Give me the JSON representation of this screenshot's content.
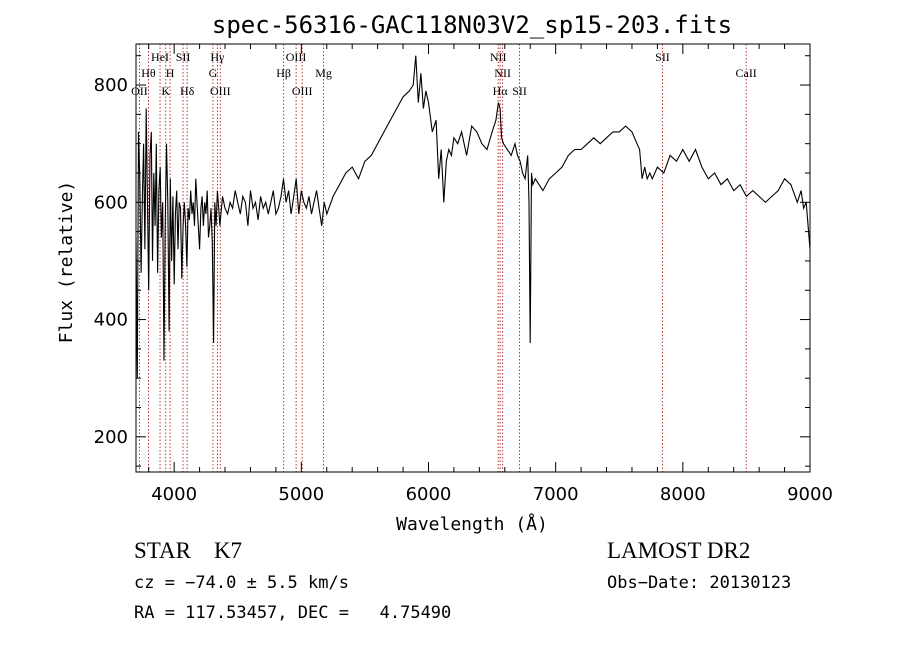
{
  "chart_data": {
    "type": "line",
    "title": "spec-56316-GAC118N03V2_sp15-203.fits",
    "xlabel": "Wavelength (Å)",
    "ylabel": "Flux (relative)",
    "xlim": [
      3700,
      9000
    ],
    "ylim": [
      140,
      870
    ],
    "xticks": [
      4000,
      5000,
      6000,
      7000,
      8000,
      9000
    ],
    "yticks": [
      200,
      400,
      600,
      800
    ],
    "grid": false,
    "colors": {
      "spectrum": "#000000",
      "lines": "#b22222"
    },
    "series": [
      {
        "x": [
          3700,
          3710,
          3720,
          3730,
          3740,
          3750,
          3760,
          3770,
          3780,
          3790,
          3800,
          3810,
          3820,
          3830,
          3840,
          3850,
          3860,
          3870,
          3880,
          3890,
          3900,
          3910,
          3920,
          3930,
          3940,
          3950,
          3960,
          3970,
          3980,
          3990,
          4000,
          4010,
          4020,
          4030,
          4040,
          4050,
          4060,
          4070,
          4080,
          4090,
          4100,
          4110,
          4120,
          4130,
          4140,
          4150,
          4160,
          4170,
          4180,
          4190,
          4200,
          4210,
          4220,
          4230,
          4240,
          4250,
          4260,
          4270,
          4280,
          4290,
          4300,
          4310,
          4320,
          4330,
          4340,
          4350,
          4360,
          4380,
          4400,
          4420,
          4440,
          4460,
          4480,
          4500,
          4520,
          4540,
          4560,
          4580,
          4600,
          4620,
          4640,
          4660,
          4680,
          4700,
          4720,
          4740,
          4760,
          4780,
          4800,
          4820,
          4840,
          4860,
          4880,
          4900,
          4920,
          4940,
          4960,
          4980,
          5000,
          5020,
          5040,
          5060,
          5080,
          5100,
          5120,
          5140,
          5160,
          5180,
          5200,
          5250,
          5300,
          5350,
          5400,
          5450,
          5500,
          5550,
          5600,
          5650,
          5700,
          5750,
          5800,
          5850,
          5880,
          5900,
          5920,
          5940,
          5960,
          5980,
          6000,
          6030,
          6060,
          6080,
          6100,
          6120,
          6140,
          6160,
          6180,
          6200,
          6230,
          6260,
          6300,
          6340,
          6380,
          6420,
          6460,
          6500,
          6530,
          6550,
          6563,
          6575,
          6590,
          6620,
          6650,
          6680,
          6700,
          6720,
          6740,
          6760,
          6780,
          6790,
          6800,
          6810,
          6820,
          6840,
          6870,
          6900,
          6950,
          7000,
          7050,
          7100,
          7150,
          7200,
          7250,
          7300,
          7350,
          7400,
          7450,
          7500,
          7550,
          7600,
          7640,
          7660,
          7680,
          7700,
          7720,
          7740,
          7760,
          7800,
          7850,
          7900,
          7950,
          8000,
          8050,
          8100,
          8150,
          8200,
          8250,
          8300,
          8350,
          8400,
          8450,
          8500,
          8550,
          8600,
          8650,
          8700,
          8750,
          8800,
          8850,
          8900,
          8930,
          8950,
          8970,
          9000
        ],
        "values": [
          540,
          300,
          720,
          640,
          480,
          610,
          700,
          520,
          760,
          610,
          450,
          680,
          720,
          500,
          650,
          560,
          700,
          480,
          620,
          660,
          540,
          600,
          330,
          560,
          700,
          600,
          380,
          640,
          500,
          610,
          460,
          580,
          620,
          520,
          600,
          590,
          470,
          560,
          600,
          560,
          490,
          590,
          570,
          620,
          580,
          600,
          560,
          640,
          600,
          560,
          520,
          590,
          610,
          560,
          600,
          580,
          620,
          540,
          560,
          590,
          530,
          360,
          600,
          560,
          620,
          590,
          560,
          610,
          590,
          580,
          600,
          590,
          620,
          600,
          580,
          610,
          600,
          560,
          620,
          590,
          600,
          570,
          610,
          590,
          600,
          580,
          600,
          620,
          580,
          590,
          610,
          640,
          600,
          620,
          580,
          610,
          640,
          580,
          620,
          600,
          590,
          610,
          580,
          600,
          620,
          590,
          560,
          600,
          580,
          610,
          630,
          650,
          660,
          640,
          670,
          680,
          700,
          720,
          740,
          760,
          780,
          790,
          800,
          850,
          770,
          820,
          760,
          790,
          770,
          720,
          740,
          640,
          690,
          600,
          670,
          690,
          680,
          710,
          700,
          720,
          680,
          730,
          720,
          700,
          690,
          720,
          740,
          770,
          760,
          710,
          700,
          690,
          680,
          700,
          680,
          670,
          650,
          640,
          680,
          600,
          360,
          650,
          630,
          640,
          630,
          620,
          640,
          650,
          660,
          680,
          690,
          690,
          700,
          710,
          700,
          710,
          720,
          720,
          730,
          720,
          700,
          690,
          640,
          660,
          640,
          650,
          640,
          660,
          650,
          680,
          670,
          690,
          670,
          690,
          660,
          640,
          650,
          630,
          640,
          620,
          630,
          610,
          620,
          610,
          600,
          610,
          620,
          640,
          630,
          600,
          620,
          590,
          600,
          520
        ]
      }
    ],
    "annotations": {
      "emission_lines": [
        {
          "label": "Hθ",
          "wavelength": 3798,
          "row": 1
        },
        {
          "label": "OII",
          "wavelength": 3727,
          "row": 2
        },
        {
          "label": "HeI",
          "wavelength": 3889,
          "row": 0
        },
        {
          "label": "H",
          "wavelength": 3968,
          "row": 1
        },
        {
          "label": "K",
          "wavelength": 3934,
          "row": 2
        },
        {
          "label": "SII",
          "wavelength": 4070,
          "row": 0
        },
        {
          "label": "Hδ",
          "wavelength": 4102,
          "row": 2
        },
        {
          "label": "Hγ",
          "wavelength": 4340,
          "row": 0
        },
        {
          "label": "G",
          "wavelength": 4305,
          "row": 1
        },
        {
          "label": "OIII",
          "wavelength": 4363,
          "row": 2
        },
        {
          "label": "OIII",
          "wavelength": 4959,
          "row": 0
        },
        {
          "label": "Hβ",
          "wavelength": 4861,
          "row": 1
        },
        {
          "label": "OIII",
          "wavelength": 5007,
          "row": 2
        },
        {
          "label": "Mg",
          "wavelength": 5175,
          "row": 1
        },
        {
          "label": "NII",
          "wavelength": 6548,
          "row": 0
        },
        {
          "label": "NII",
          "wavelength": 6583,
          "row": 1
        },
        {
          "label": "Hα",
          "wavelength": 6563,
          "row": 2
        },
        {
          "label": "SII",
          "wavelength": 6716,
          "row": 2
        },
        {
          "label": "SII",
          "wavelength": 7840,
          "row": 0
        },
        {
          "label": "CaII",
          "wavelength": 8498,
          "row": 1
        }
      ]
    }
  },
  "footer": {
    "class_text": "STAR    K7",
    "cz_text": "cz = −74.0 ± 5.5 km/s",
    "radec_text": "RA = 117.53457, DEC =   4.75490",
    "survey_text": "LAMOST DR2",
    "obsdate_text": "Obs−Date: 20130123"
  }
}
